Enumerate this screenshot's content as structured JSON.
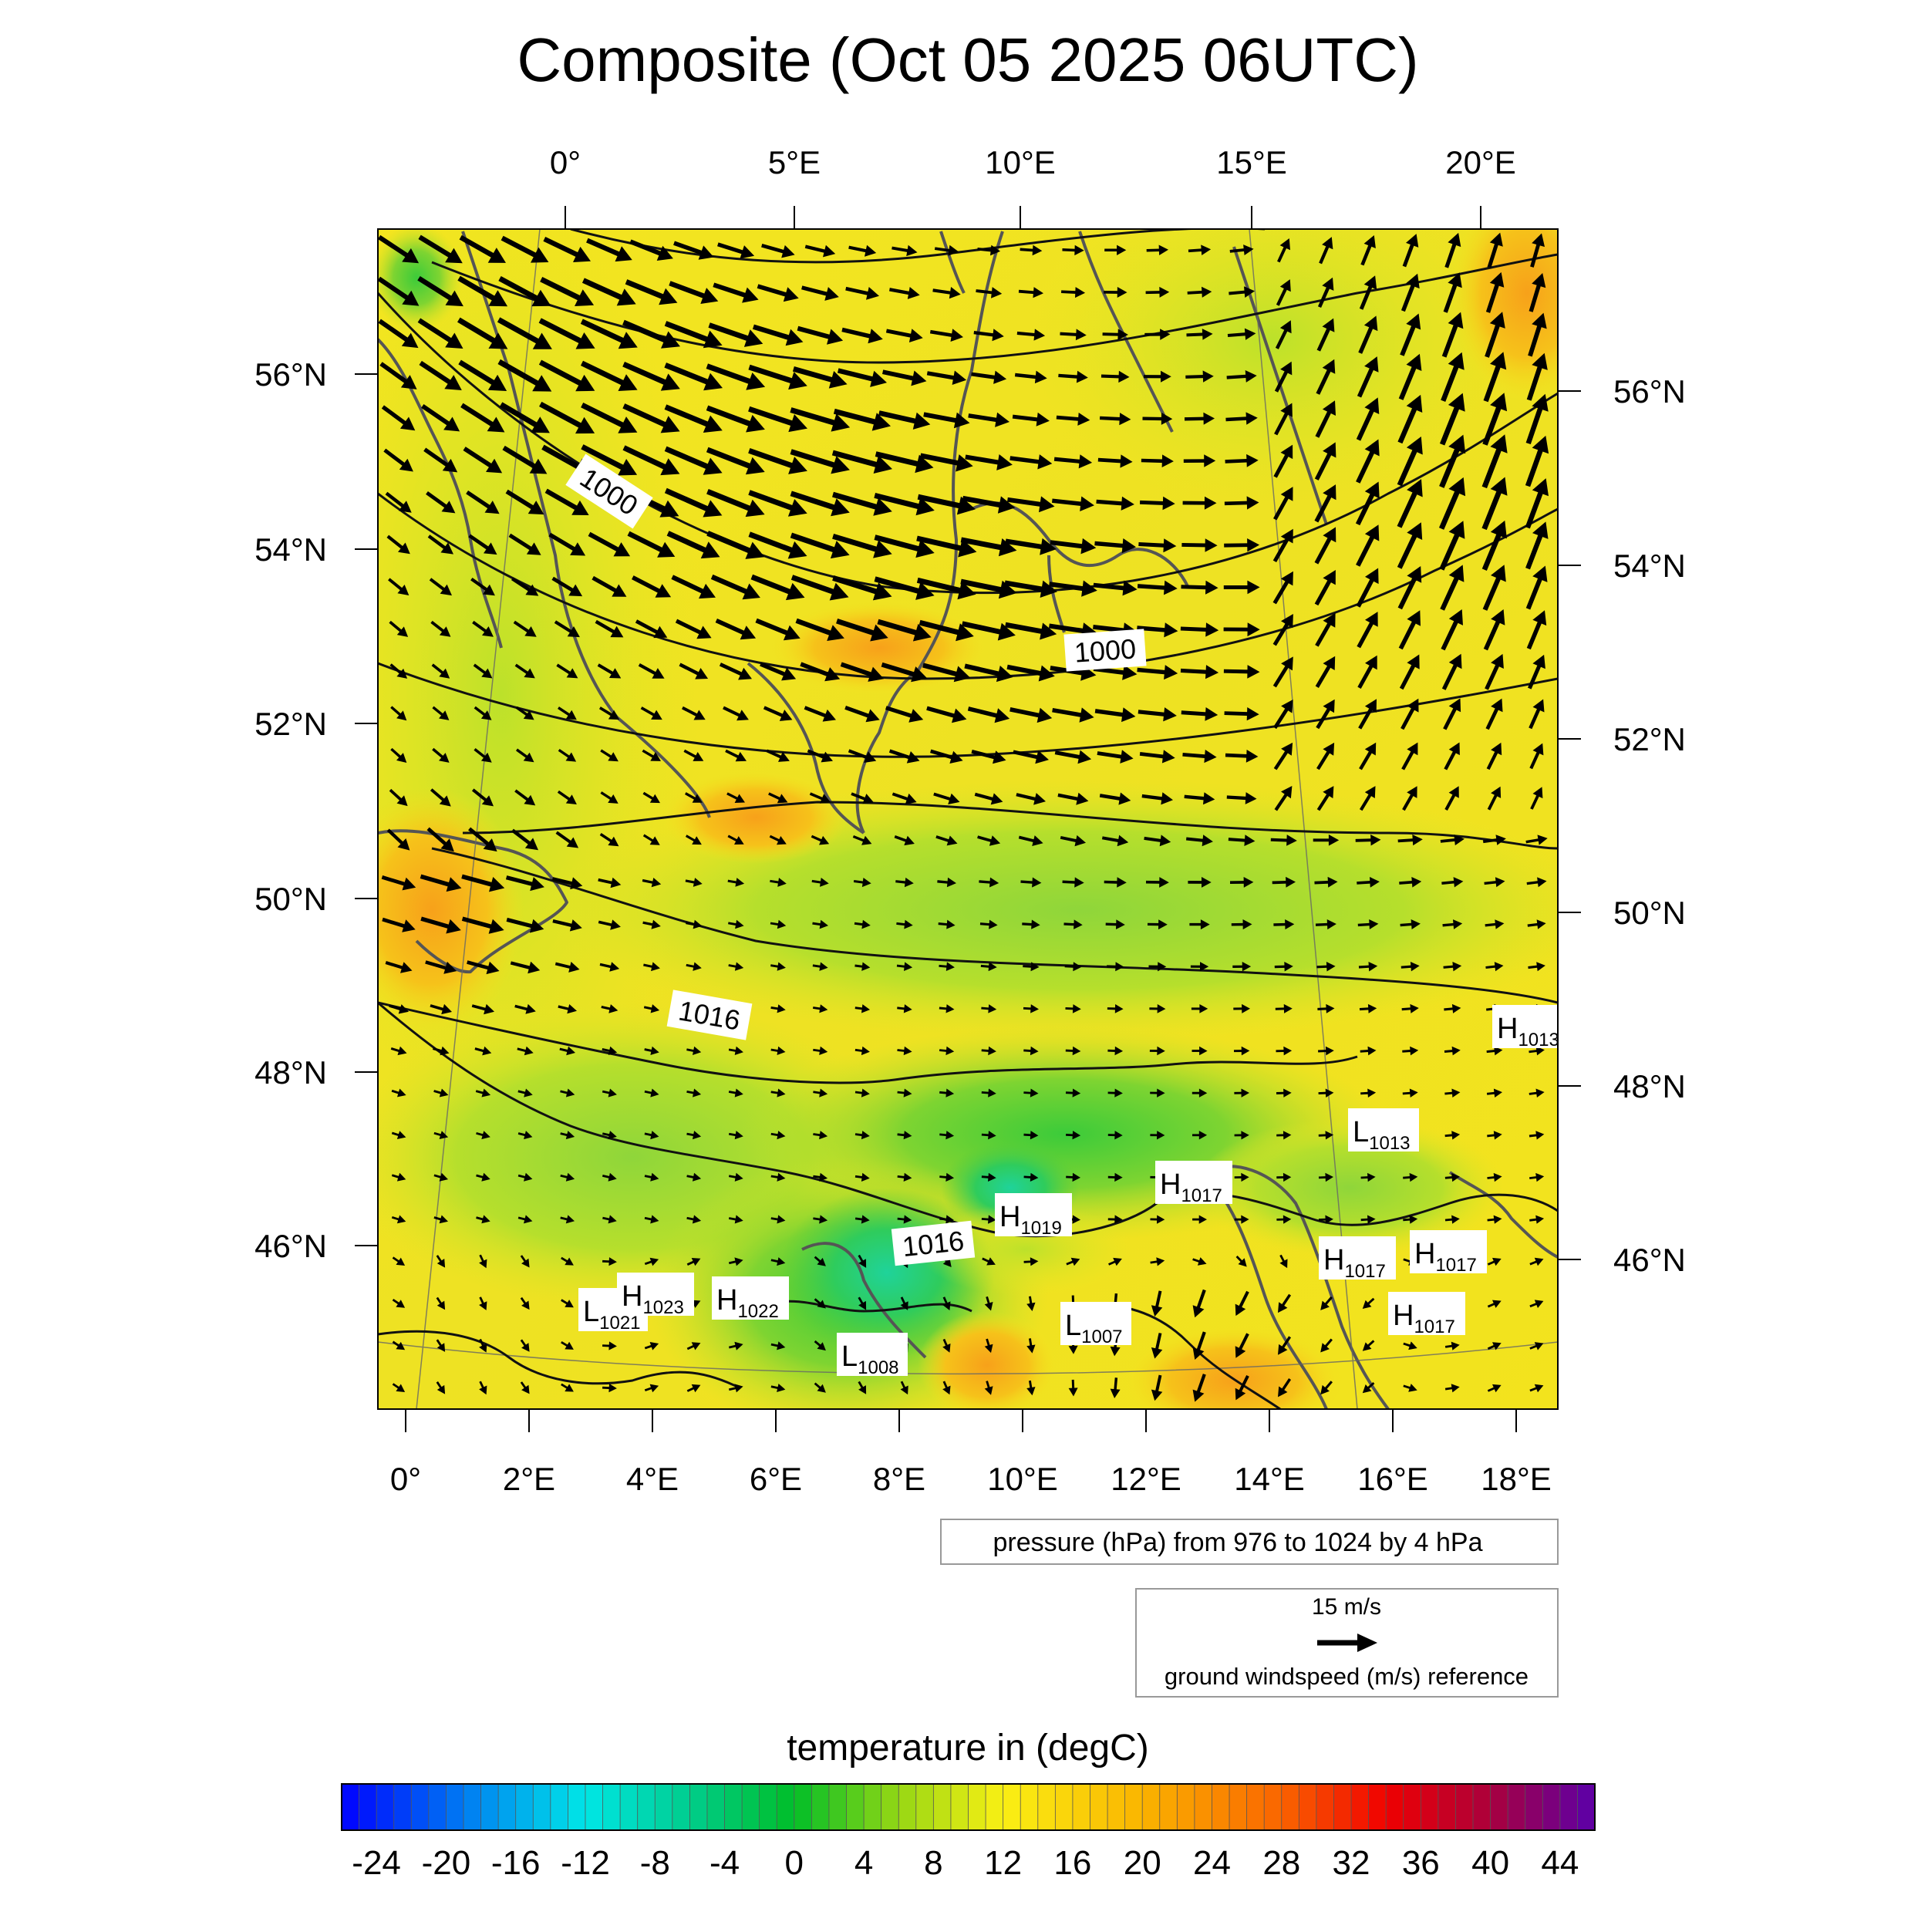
{
  "title": "Composite (Oct 05 2025 06UTC)",
  "top_lon_labels": [
    "0°",
    "5°E",
    "10°E",
    "15°E",
    "20°E"
  ],
  "bottom_lon_labels": [
    "0°",
    "2°E",
    "4°E",
    "6°E",
    "8°E",
    "10°E",
    "12°E",
    "14°E",
    "16°E",
    "18°E"
  ],
  "left_lat_labels": [
    "56°N",
    "54°N",
    "52°N",
    "50°N",
    "48°N",
    "46°N"
  ],
  "right_lat_labels": [
    "56°N",
    "54°N",
    "52°N",
    "50°N",
    "48°N",
    "46°N"
  ],
  "isobar_labels": [
    "1000",
    "1000",
    "1016",
    "1016"
  ],
  "pressure_centers": [
    {
      "kind": "H",
      "value": "1013"
    },
    {
      "kind": "L",
      "value": "1013"
    },
    {
      "kind": "H",
      "value": "1017"
    },
    {
      "kind": "H",
      "value": "1019"
    },
    {
      "kind": "H",
      "value": "1017"
    },
    {
      "kind": "H",
      "value": "1017"
    },
    {
      "kind": "H",
      "value": "1017"
    },
    {
      "kind": "L",
      "value": "1007"
    },
    {
      "kind": "L",
      "value": "1021"
    },
    {
      "kind": "H",
      "value": "1023"
    },
    {
      "kind": "H",
      "value": "1022"
    },
    {
      "kind": "L",
      "value": "1008"
    }
  ],
  "pressure_note": "pressure (hPa) from 976 to 1024 by 4 hPa",
  "wind_reference": {
    "speed_label": "15 m/s",
    "caption": "ground windspeed (m/s) reference"
  },
  "colorbar": {
    "title": "temperature in (degC)",
    "min": -26,
    "max": 46,
    "step": 1,
    "tick_labels": [
      "-24",
      "-20",
      "-16",
      "-12",
      "-8",
      "-4",
      "0",
      "4",
      "8",
      "12",
      "16",
      "20",
      "24",
      "28",
      "32",
      "36",
      "40",
      "44"
    ]
  },
  "colors": {
    "field_base": "#f2e21e",
    "isobar": "#111111",
    "coastline": "#555555",
    "arrow": "#000000"
  }
}
